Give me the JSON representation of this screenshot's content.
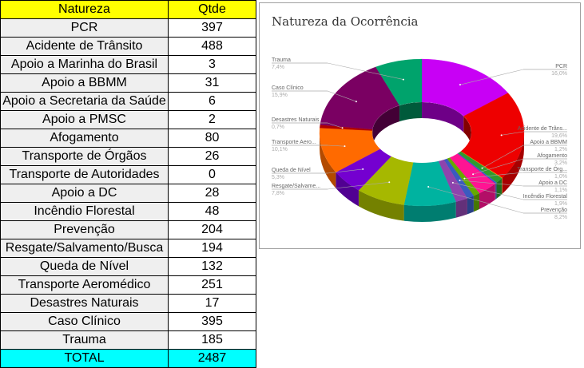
{
  "table": {
    "headers": [
      "Natureza",
      "Qtde"
    ],
    "rows": [
      [
        "PCR",
        "397"
      ],
      [
        "Acidente de Trânsito",
        "488"
      ],
      [
        "Apoio a Marinha do Brasil",
        "3"
      ],
      [
        "Apoio a BBMM",
        "31"
      ],
      [
        "Apoio a Secretaria da Saúde",
        "6"
      ],
      [
        "Apoio a PMSC",
        "2"
      ],
      [
        "Afogamento",
        "80"
      ],
      [
        "Transporte de Órgãos",
        "26"
      ],
      [
        "Transporte de Autoridades",
        "0"
      ],
      [
        "Apoio a DC",
        "28"
      ],
      [
        "Incêndio Florestal",
        "48"
      ],
      [
        "Prevenção",
        "204"
      ],
      [
        "Resgate/Salvamento/Busca",
        "194"
      ],
      [
        "Queda de Nível",
        "132"
      ],
      [
        "Transporte Aeromédico",
        "251"
      ],
      [
        "Desastres Naturais",
        "17"
      ],
      [
        "Caso Clínico",
        "395"
      ],
      [
        "Trauma",
        "185"
      ]
    ],
    "total": [
      "TOTAL",
      "2487"
    ]
  },
  "chart_data": {
    "type": "pie",
    "style": "3d-donut",
    "title": "Natureza da Ocorrência",
    "categories": [
      "PCR",
      "Acidente de Trânsito",
      "Apoio a Marinha do Brasil",
      "Apoio a BBMM",
      "Apoio a Secretaria da Saúde",
      "Apoio a PMSC",
      "Afogamento",
      "Transporte de Órgãos",
      "Transporte de Autoridades",
      "Apoio a DC",
      "Incêndio Florestal",
      "Prevenção",
      "Resgate/Salvamento/Busca",
      "Queda de Nível",
      "Transporte Aeromédico",
      "Desastres Naturais",
      "Caso Clínico",
      "Trauma"
    ],
    "values": [
      397,
      488,
      3,
      31,
      6,
      2,
      80,
      26,
      0,
      28,
      48,
      204,
      194,
      132,
      251,
      17,
      395,
      185
    ],
    "colors": [
      "#c800f5",
      "#ee0000",
      "#ff9900",
      "#2f9a2f",
      "#3366cc",
      "#990099",
      "#ff1493",
      "#66aa00",
      "#dd4477",
      "#3b5bbf",
      "#8e44ad",
      "#00b3a0",
      "#a6b800",
      "#7400d0",
      "#ff6a00",
      "#b00000",
      "#7a0062",
      "#00a36c"
    ],
    "labels": [
      {
        "i": 17,
        "name": "Trauma",
        "pct": "7,4%",
        "side": "left"
      },
      {
        "i": 16,
        "name": "Caso Clínico",
        "pct": "15,9%",
        "side": "left"
      },
      {
        "i": 15,
        "name": "Desastres Naturais",
        "pct": "0,7%",
        "side": "left"
      },
      {
        "i": 14,
        "name": "Transporte Aero...",
        "pct": "10,1%",
        "side": "left"
      },
      {
        "i": 13,
        "name": "Queda de Nível",
        "pct": "5,3%",
        "side": "left"
      },
      {
        "i": 12,
        "name": "Resgate/Salvame...",
        "pct": "7,8%",
        "side": "left"
      },
      {
        "i": 0,
        "name": "PCR",
        "pct": "16,0%",
        "side": "right"
      },
      {
        "i": 1,
        "name": "Acidente de Trâns...",
        "pct": "19,6%",
        "side": "right"
      },
      {
        "i": 3,
        "name": "Apoio a BBMM",
        "pct": "1,2%",
        "side": "right"
      },
      {
        "i": 6,
        "name": "Afogamento",
        "pct": "3,2%",
        "side": "right"
      },
      {
        "i": 7,
        "name": "Transporte de Órg...",
        "pct": "1,0%",
        "side": "right"
      },
      {
        "i": 9,
        "name": "Apoio a DC",
        "pct": "1,1%",
        "side": "right"
      },
      {
        "i": 10,
        "name": "Incêndio Florestal",
        "pct": "1,9%",
        "side": "right"
      },
      {
        "i": 11,
        "name": "Prevenção",
        "pct": "8,2%",
        "side": "right"
      }
    ]
  }
}
